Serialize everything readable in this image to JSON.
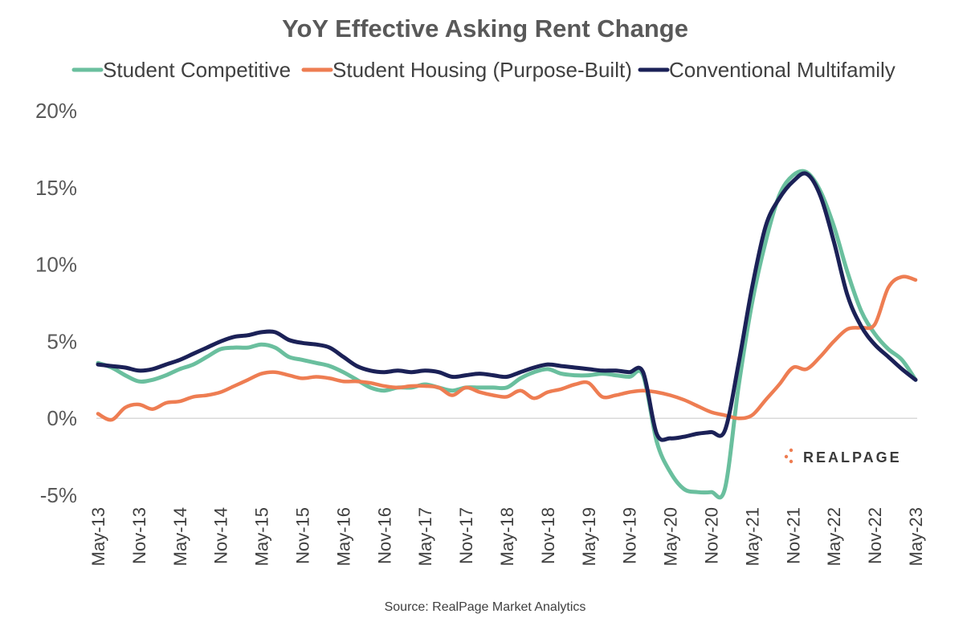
{
  "chart_data": {
    "type": "line",
    "title": "YoY Effective Asking Rent Change",
    "xlabel": "",
    "ylabel": "",
    "ylim": [
      -5,
      20
    ],
    "yticks": [
      -5,
      0,
      5,
      10,
      15,
      20
    ],
    "ytick_labels": [
      "-5%",
      "0%",
      "5%",
      "10%",
      "15%",
      "20%"
    ],
    "x_start": "May-13",
    "x_tick_labels": [
      "May-13",
      "Nov-13",
      "May-14",
      "Nov-14",
      "May-15",
      "Nov-15",
      "May-16",
      "Nov-16",
      "May-17",
      "Nov-17",
      "May-18",
      "Nov-18",
      "May-19",
      "Nov-19",
      "May-20",
      "Nov-20",
      "May-21",
      "Nov-21",
      "May-22",
      "Nov-22",
      "May-23"
    ],
    "x_tick_months": [
      0,
      6,
      12,
      18,
      24,
      30,
      36,
      42,
      48,
      54,
      60,
      66,
      72,
      78,
      84,
      90,
      96,
      102,
      108,
      114,
      120
    ],
    "legend_position": "top",
    "grid": false,
    "source": "Source: RealPage Market Analytics",
    "logo_text": "REALPAGE",
    "series": [
      {
        "name": "Student Competitive",
        "color": "#6abf9e",
        "months": [
          0,
          2,
          4,
          6,
          8,
          10,
          12,
          14,
          16,
          18,
          20,
          22,
          24,
          26,
          28,
          30,
          32,
          34,
          36,
          38,
          40,
          42,
          44,
          46,
          48,
          50,
          52,
          54,
          56,
          58,
          60,
          62,
          64,
          66,
          68,
          70,
          72,
          74,
          76,
          78,
          80,
          82,
          84,
          86,
          88,
          90,
          92,
          94,
          96,
          98,
          100,
          102,
          104,
          106,
          108,
          110,
          112,
          114,
          116,
          118,
          120
        ],
        "values": [
          3.6,
          3.3,
          2.8,
          2.4,
          2.5,
          2.8,
          3.2,
          3.5,
          4.0,
          4.5,
          4.6,
          4.6,
          4.8,
          4.6,
          4.0,
          3.8,
          3.6,
          3.4,
          3.0,
          2.5,
          2.0,
          1.8,
          2.0,
          2.0,
          2.2,
          2.0,
          1.8,
          2.0,
          2.0,
          2.0,
          2.0,
          2.6,
          3.0,
          3.2,
          2.9,
          2.8,
          2.8,
          2.9,
          2.8,
          2.7,
          2.8,
          -1.5,
          -3.5,
          -4.6,
          -4.8,
          -4.8,
          -4.6,
          2.0,
          7.5,
          11.5,
          14.5,
          15.8,
          16.0,
          14.8,
          12.5,
          9.5,
          7.0,
          5.5,
          4.5,
          3.8,
          2.5
        ]
      },
      {
        "name": "Student Housing (Purpose-Built)",
        "color": "#ee7d52",
        "months": [
          0,
          2,
          4,
          6,
          8,
          10,
          12,
          14,
          16,
          18,
          20,
          22,
          24,
          26,
          28,
          30,
          32,
          34,
          36,
          38,
          40,
          42,
          44,
          46,
          48,
          50,
          52,
          54,
          56,
          58,
          60,
          62,
          64,
          66,
          68,
          70,
          72,
          74,
          76,
          78,
          80,
          82,
          84,
          86,
          88,
          90,
          92,
          94,
          96,
          98,
          100,
          102,
          104,
          106,
          108,
          110,
          112,
          114,
          116,
          118,
          120
        ],
        "values": [
          0.3,
          -0.1,
          0.7,
          0.9,
          0.6,
          1.0,
          1.1,
          1.4,
          1.5,
          1.7,
          2.1,
          2.5,
          2.9,
          3.0,
          2.8,
          2.6,
          2.7,
          2.6,
          2.4,
          2.4,
          2.3,
          2.1,
          2.0,
          2.1,
          2.1,
          2.0,
          1.5,
          2.0,
          1.7,
          1.5,
          1.4,
          1.8,
          1.3,
          1.7,
          1.9,
          2.2,
          2.3,
          1.4,
          1.5,
          1.7,
          1.8,
          1.7,
          1.5,
          1.2,
          0.8,
          0.4,
          0.2,
          0.0,
          0.2,
          1.2,
          2.2,
          3.3,
          3.2,
          4.0,
          5.0,
          5.8,
          5.9,
          6.1,
          8.5,
          9.2,
          9.0
        ]
      },
      {
        "name": "Conventional Multifamily",
        "color": "#1b2157",
        "months": [
          0,
          2,
          4,
          6,
          8,
          10,
          12,
          14,
          16,
          18,
          20,
          22,
          24,
          26,
          28,
          30,
          32,
          34,
          36,
          38,
          40,
          42,
          44,
          46,
          48,
          50,
          52,
          54,
          56,
          58,
          60,
          62,
          64,
          66,
          68,
          70,
          72,
          74,
          76,
          78,
          80,
          82,
          84,
          86,
          88,
          90,
          92,
          94,
          96,
          98,
          100,
          102,
          104,
          106,
          108,
          110,
          112,
          114,
          116,
          118,
          120
        ],
        "values": [
          3.5,
          3.4,
          3.3,
          3.1,
          3.2,
          3.5,
          3.8,
          4.2,
          4.6,
          5.0,
          5.3,
          5.4,
          5.6,
          5.6,
          5.1,
          4.9,
          4.8,
          4.6,
          4.0,
          3.4,
          3.1,
          3.0,
          3.1,
          3.0,
          3.1,
          3.0,
          2.7,
          2.8,
          2.9,
          2.8,
          2.7,
          3.0,
          3.3,
          3.5,
          3.4,
          3.3,
          3.2,
          3.1,
          3.1,
          3.0,
          3.0,
          -1.0,
          -1.3,
          -1.2,
          -1.0,
          -0.9,
          -0.8,
          3.5,
          8.5,
          12.5,
          14.3,
          15.4,
          15.9,
          14.5,
          11.5,
          8.0,
          6.0,
          4.8,
          4.0,
          3.2,
          2.5
        ]
      }
    ]
  }
}
